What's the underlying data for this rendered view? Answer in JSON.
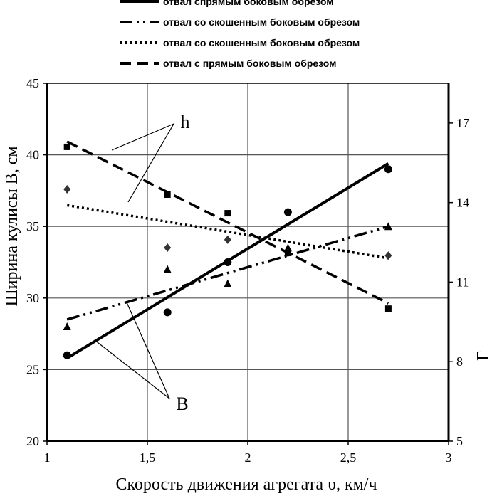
{
  "chart_data": {
    "type": "line",
    "x_axis": {
      "label": "Скорость движения агрегата υ, км/ч",
      "range": [
        1,
        3
      ],
      "ticks": [
        1,
        1.5,
        2,
        2.5,
        3
      ],
      "tick_labels": [
        "1",
        "1,5",
        "2",
        "2,5",
        "3"
      ]
    },
    "y_axis_left": {
      "label": "Ширина кулисы В, см",
      "range": [
        20,
        45
      ],
      "ticks": [
        20,
        25,
        30,
        35,
        40,
        45
      ],
      "tick_labels": [
        "20",
        "25",
        "30",
        "35",
        "40",
        "45"
      ]
    },
    "y_axis_right": {
      "label": "Г",
      "range": [
        5,
        18.5
      ],
      "ticks": [
        5,
        8,
        11,
        14,
        17
      ],
      "tick_labels": [
        "5",
        "8",
        "11",
        "14",
        "17"
      ]
    },
    "grid": true,
    "legend": {
      "position": "top",
      "entries": [
        {
          "label": "отвал спрямым  боковым обрезом",
          "style": "solid"
        },
        {
          "label": "отвал со скошенным боковым обрезом",
          "style": "dashdotdot"
        },
        {
          "label": "отвал со скошенным боковым обрезом",
          "style": "dotted"
        },
        {
          "label": "отвал с прямым боковым обрезом",
          "style": "dashed"
        }
      ]
    },
    "series": [
      {
        "style": "solid",
        "axis": "left",
        "marker": "circle",
        "points": [
          [
            1.1,
            26.0
          ],
          [
            1.6,
            29.0
          ],
          [
            1.9,
            32.5
          ],
          [
            2.2,
            36.0
          ],
          [
            2.7,
            39.0
          ]
        ],
        "trend": [
          [
            1.1,
            25.8
          ],
          [
            2.7,
            39.4
          ]
        ]
      },
      {
        "style": "dashdotdot",
        "axis": "left",
        "marker": "triangle",
        "points": [
          [
            1.1,
            28.0
          ],
          [
            1.6,
            32.0
          ],
          [
            1.9,
            31.0
          ],
          [
            2.2,
            33.5
          ],
          [
            2.7,
            35.0
          ]
        ],
        "trend": [
          [
            1.1,
            28.5
          ],
          [
            2.7,
            35.0
          ]
        ]
      },
      {
        "style": "dotted",
        "axis": "right",
        "marker": "diamond",
        "points": [
          [
            1.1,
            14.5
          ],
          [
            1.6,
            12.3
          ],
          [
            1.9,
            12.6
          ],
          [
            2.2,
            12.1
          ],
          [
            2.7,
            12.0
          ]
        ],
        "trend": [
          [
            1.1,
            13.9
          ],
          [
            2.7,
            11.9
          ]
        ]
      },
      {
        "style": "dashed",
        "axis": "right",
        "marker": "square",
        "points": [
          [
            1.1,
            16.1
          ],
          [
            1.6,
            14.3
          ],
          [
            1.9,
            13.6
          ],
          [
            2.2,
            12.1
          ],
          [
            2.7,
            10.0
          ]
        ],
        "trend": [
          [
            1.1,
            16.3
          ],
          [
            2.7,
            10.2
          ]
        ]
      }
    ],
    "annotations": [
      {
        "text": "h",
        "targets": [
          "dashed",
          "dotted"
        ]
      },
      {
        "text": "В",
        "targets": [
          "solid",
          "dashdotdot"
        ]
      }
    ]
  }
}
